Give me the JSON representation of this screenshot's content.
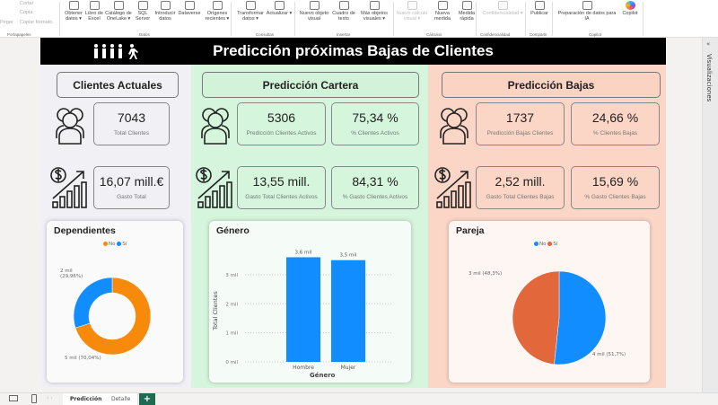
{
  "ribbon": {
    "clipboard": {
      "paste": "Pegar",
      "cut": "Cortar",
      "copy": "Copia",
      "format": "Copiar formato",
      "group": "Portapapeles"
    },
    "buttons": [
      {
        "label": "Obtener datos ▾",
        "group": "Datos"
      },
      {
        "label": "Libro de Excel"
      },
      {
        "label": "Catálogo de OneLake ▾"
      },
      {
        "label": "SQL Server"
      },
      {
        "label": "Introducir datos"
      },
      {
        "label": "Dataverse"
      },
      {
        "label": "Orígenes recientes ▾"
      },
      {
        "label": "Transformar datos ▾"
      },
      {
        "label": "Actualizar ▾"
      },
      {
        "label": "Nuevo objeto visual"
      },
      {
        "label": "Cuadro de texto"
      },
      {
        "label": "Más objetos visuales ▾"
      },
      {
        "label": "Nuevo cálculo visual ▾",
        "disabled": true
      },
      {
        "label": "Nueva medida"
      },
      {
        "label": "Medida rápida"
      },
      {
        "label": "Confidencialidad ▾",
        "disabled": true
      },
      {
        "label": "Publicar"
      },
      {
        "label": "Preparación de datos para IA"
      },
      {
        "label": "Copilot"
      }
    ],
    "groups": [
      "Portapapeles",
      "Datos",
      "Consultas",
      "Insertar",
      "Cálculos",
      "Confidencialidad",
      "Compartir",
      "Copilot"
    ]
  },
  "report": {
    "title": "Predicción próximas Bajas de Clientes",
    "sections": [
      {
        "header": "Clientes Actuales",
        "kpis": [
          {
            "value": "7043",
            "label": "Total Clientes"
          },
          {
            "value": "16,07 mill.€",
            "label": "Gasto Total"
          }
        ]
      },
      {
        "header": "Predicción Cartera",
        "kpis": [
          {
            "value": "5306",
            "label": "Predicción Clientes Activos"
          },
          {
            "value": "75,34 %",
            "label": "% Clientes Activos"
          },
          {
            "value": "13,55 mill.",
            "label": "Gasto Total Clientes Activos"
          },
          {
            "value": "84,31 %",
            "label": "% Gasto Clientes Activos"
          }
        ]
      },
      {
        "header": "Predicción Bajas",
        "kpis": [
          {
            "value": "1737",
            "label": "Predicción Bajas Clientes"
          },
          {
            "value": "24,66 %",
            "label": "% Clientes Bajas"
          },
          {
            "value": "2,52 mill.",
            "label": "Gasto Total Clientes Bajas"
          },
          {
            "value": "15,69 %",
            "label": "% Gasto Clientes Bajas"
          }
        ]
      }
    ],
    "colors": {
      "gray_panel": "#f0f0f5",
      "green_panel": "#d5f5dc",
      "peach_panel": "#fbd6c6",
      "blue": "#118dff",
      "orange": "#f7890b",
      "dark_orange": "#e2673a"
    }
  },
  "chart_data": [
    {
      "type": "pie",
      "donut": true,
      "title": "Dependientes",
      "legend_position": "top",
      "categories": [
        "No",
        "Sí"
      ],
      "values": [
        70.04,
        29.96
      ],
      "colors": [
        "#f7890b",
        "#118dff"
      ],
      "data_labels": [
        "5 mil (70,04%)",
        "2 mil (29,96%)"
      ]
    },
    {
      "type": "bar",
      "title": "Género",
      "categories": [
        "Hombre",
        "Mujer"
      ],
      "values": [
        3.6,
        3.5
      ],
      "data_labels": [
        "3,6 mil",
        "3,5 mil"
      ],
      "xlabel": "Género",
      "ylabel": "Total Clientes",
      "yticks": [
        "0 mil",
        "1 mil",
        "2 mil",
        "3 mil"
      ],
      "ylim": [
        0,
        3.8
      ],
      "grid": true,
      "color": "#118dff"
    },
    {
      "type": "pie",
      "title": "Pareja",
      "legend_position": "top",
      "categories": [
        "No",
        "Sí"
      ],
      "values": [
        51.7,
        48.3
      ],
      "colors": [
        "#118dff",
        "#e2673a"
      ],
      "data_labels": [
        "4 mil (51,7%)",
        "3 mil (48,3%)"
      ]
    }
  ],
  "pane": {
    "visualizations": "Visualizaciones"
  },
  "pages": {
    "tabs": [
      "Predicción",
      "Detalle"
    ],
    "add": "+"
  }
}
